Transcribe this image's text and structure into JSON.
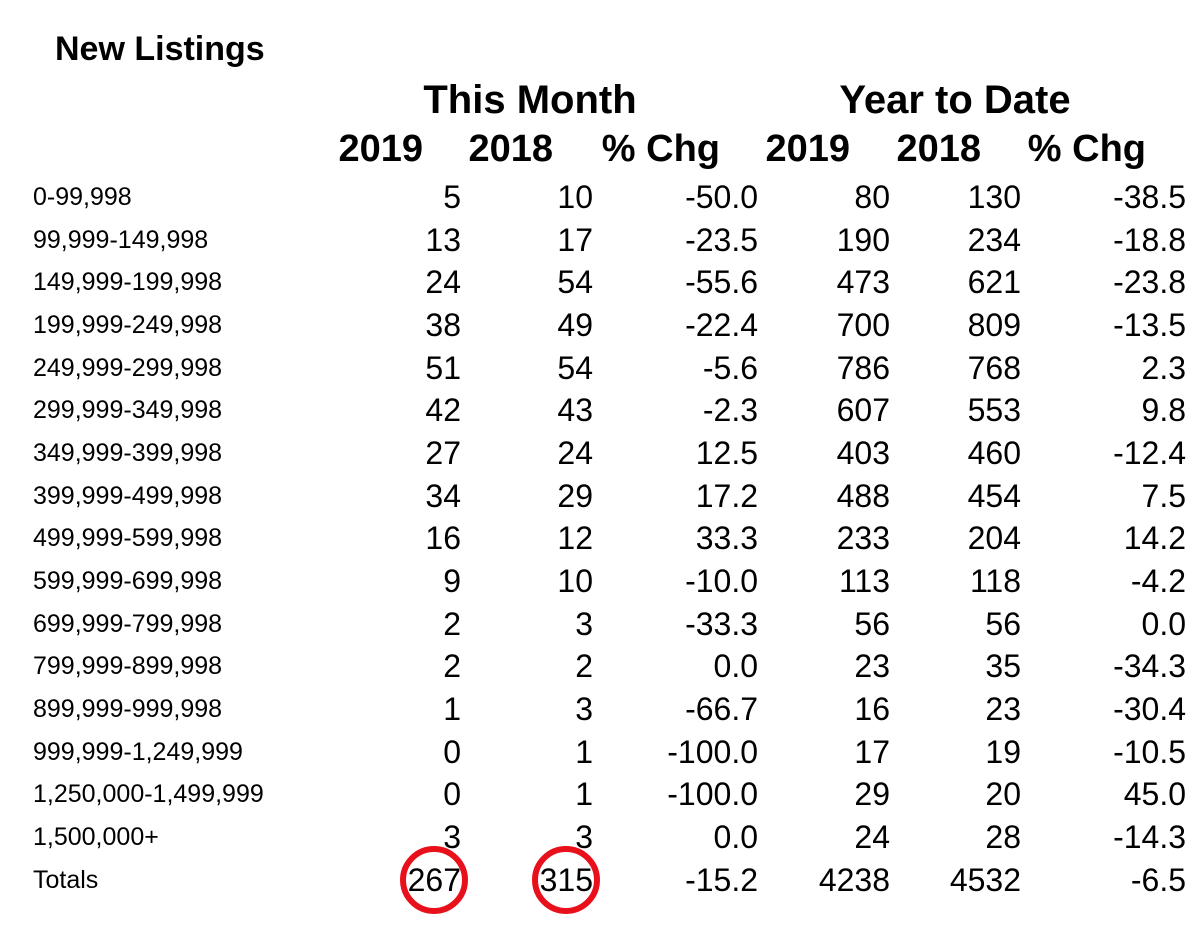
{
  "title": "New Listings",
  "groups": {
    "this_month": "This Month",
    "year_to_date": "Year to Date"
  },
  "columns": [
    "2019",
    "2018",
    "% Chg",
    "2019",
    "2018",
    "% Chg"
  ],
  "rows": [
    {
      "label": "0-99,998",
      "v": [
        "5",
        "10",
        "-50.0",
        "80",
        "130",
        "-38.5"
      ]
    },
    {
      "label": "99,999-149,998",
      "v": [
        "13",
        "17",
        "-23.5",
        "190",
        "234",
        "-18.8"
      ]
    },
    {
      "label": "149,999-199,998",
      "v": [
        "24",
        "54",
        "-55.6",
        "473",
        "621",
        "-23.8"
      ]
    },
    {
      "label": "199,999-249,998",
      "v": [
        "38",
        "49",
        "-22.4",
        "700",
        "809",
        "-13.5"
      ]
    },
    {
      "label": "249,999-299,998",
      "v": [
        "51",
        "54",
        "-5.6",
        "786",
        "768",
        "2.3"
      ]
    },
    {
      "label": "299,999-349,998",
      "v": [
        "42",
        "43",
        "-2.3",
        "607",
        "553",
        "9.8"
      ]
    },
    {
      "label": "349,999-399,998",
      "v": [
        "27",
        "24",
        "12.5",
        "403",
        "460",
        "-12.4"
      ]
    },
    {
      "label": "399,999-499,998",
      "v": [
        "34",
        "29",
        "17.2",
        "488",
        "454",
        "7.5"
      ]
    },
    {
      "label": "499,999-599,998",
      "v": [
        "16",
        "12",
        "33.3",
        "233",
        "204",
        "14.2"
      ]
    },
    {
      "label": "599,999-699,998",
      "v": [
        "9",
        "10",
        "-10.0",
        "113",
        "118",
        "-4.2"
      ]
    },
    {
      "label": "699,999-799,998",
      "v": [
        "2",
        "3",
        "-33.3",
        "56",
        "56",
        "0.0"
      ]
    },
    {
      "label": "799,999-899,998",
      "v": [
        "2",
        "2",
        "0.0",
        "23",
        "35",
        "-34.3"
      ]
    },
    {
      "label": "899,999-999,998",
      "v": [
        "1",
        "3",
        "-66.7",
        "16",
        "23",
        "-30.4"
      ]
    },
    {
      "label": "999,999-1,249,999",
      "v": [
        "0",
        "1",
        "-100.0",
        "17",
        "19",
        "-10.5"
      ]
    },
    {
      "label": "1,250,000-1,499,999",
      "v": [
        "0",
        "1",
        "-100.0",
        "29",
        "20",
        "45.0"
      ]
    },
    {
      "label": "1,500,000+",
      "v": [
        "3",
        "3",
        "0.0",
        "24",
        "28",
        "-14.3"
      ]
    }
  ],
  "totals": {
    "label": "Totals",
    "v": [
      "267",
      "315",
      "-15.2",
      "4238",
      "4532",
      "-6.5"
    ]
  },
  "highlight_color": "#e8101a"
}
